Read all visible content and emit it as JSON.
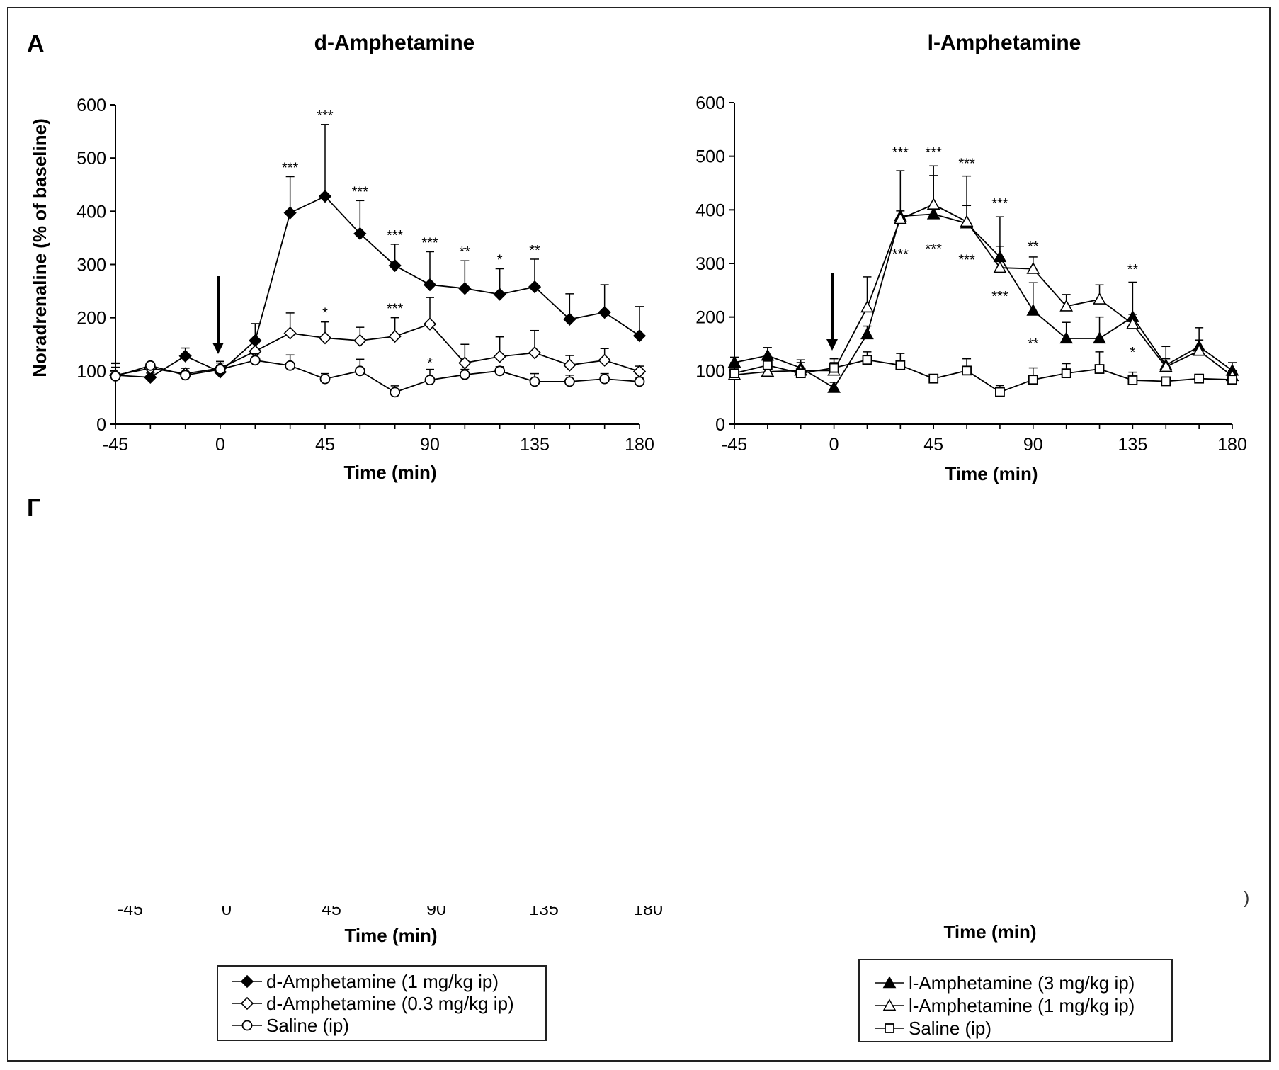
{
  "panel_label": "A",
  "cut_label": "Г",
  "legend_left": {
    "entries": [
      {
        "label": "d-Amphetamine (1 mg/kg ip)",
        "marker": "diamond-filled"
      },
      {
        "label": "d-Amphetamine (0.3 mg/kg ip)",
        "marker": "diamond-open"
      },
      {
        "label": "Saline (ip)",
        "marker": "circle-open"
      }
    ]
  },
  "legend_right": {
    "entries": [
      {
        "label": "l-Amphetamine (3 mg/kg ip)",
        "marker": "triangle-filled"
      },
      {
        "label": "l-Amphetamine (1 mg/kg ip)",
        "marker": "triangle-open"
      },
      {
        "label": "Saline (ip)",
        "marker": "square-open"
      }
    ]
  },
  "lower_partial": {
    "left_xlabel": "Time (min)",
    "right_xlabel": "Time (min)",
    "left_ticks": [
      "-45",
      "0",
      "45",
      "90",
      "135",
      "180"
    ],
    "right_edge_char": ")"
  },
  "chart_data": [
    {
      "type": "line",
      "title": "d-Amphetamine",
      "xlabel": "Time (min)",
      "ylabel": "Noradrenaline (% of baseline)",
      "xlim": [
        -45,
        180
      ],
      "ylim": [
        0,
        600
      ],
      "xticks": [
        -45,
        0,
        45,
        90,
        135,
        180
      ],
      "yticks": [
        0,
        100,
        200,
        300,
        400,
        500,
        600
      ],
      "grid": false,
      "legend": "bottom",
      "injection_arrow_x": 0,
      "x": [
        -45,
        -30,
        -15,
        0,
        15,
        30,
        45,
        60,
        75,
        90,
        105,
        120,
        135,
        150,
        165,
        180
      ],
      "series": [
        {
          "name": "d-Amphetamine (1 mg/kg ip)",
          "marker": "diamond-filled",
          "values": [
            92,
            88,
            128,
            98,
            157,
            397,
            428,
            358,
            298,
            262,
            255,
            244,
            258,
            197,
            210,
            166
          ],
          "error": [
            22,
            8,
            15,
            12,
            32,
            68,
            135,
            62,
            40,
            62,
            52,
            48,
            52,
            48,
            52,
            55
          ]
        },
        {
          "name": "d-Amphetamine (0.3 mg/kg ip)",
          "marker": "diamond-open",
          "values": [
            92,
            105,
            95,
            105,
            137,
            171,
            162,
            157,
            165,
            188,
            115,
            127,
            134,
            111,
            120,
            99
          ],
          "error": [
            15,
            10,
            10,
            10,
            15,
            38,
            30,
            25,
            35,
            50,
            35,
            37,
            42,
            18,
            22,
            10
          ]
        },
        {
          "name": "Saline (ip)",
          "marker": "circle-open",
          "values": [
            90,
            110,
            92,
            103,
            120,
            110,
            85,
            100,
            60,
            83,
            93,
            100,
            80,
            80,
            85,
            80
          ],
          "error": [
            25,
            5,
            5,
            15,
            12,
            20,
            10,
            22,
            12,
            20,
            10,
            8,
            15,
            12,
            10,
            8
          ]
        }
      ],
      "annotations": [
        {
          "x": 30,
          "y": 465,
          "text": "***"
        },
        {
          "x": 45,
          "y": 563,
          "text": "***"
        },
        {
          "x": 60,
          "y": 420,
          "text": "***"
        },
        {
          "x": 75,
          "y": 338,
          "text": "***"
        },
        {
          "x": 90,
          "y": 324,
          "text": "***"
        },
        {
          "x": 105,
          "y": 307,
          "text": "**"
        },
        {
          "x": 120,
          "y": 292,
          "text": "*"
        },
        {
          "x": 135,
          "y": 310,
          "text": "**"
        },
        {
          "x": 45,
          "y": 192,
          "text": "*"
        },
        {
          "x": 75,
          "y": 200,
          "text": "***"
        },
        {
          "x": 90,
          "y": 138,
          "text": "*",
          "below": true
        }
      ]
    },
    {
      "type": "line",
      "title": "l-Amphetamine",
      "xlabel": "Time (min)",
      "ylabel": "",
      "xlim": [
        -45,
        180
      ],
      "ylim": [
        0,
        600
      ],
      "xticks": [
        -45,
        0,
        45,
        90,
        135,
        180
      ],
      "yticks": [
        0,
        100,
        200,
        300,
        400,
        500,
        600
      ],
      "grid": false,
      "legend": "bottom",
      "injection_arrow_x": 0,
      "x": [
        -45,
        -30,
        -15,
        0,
        15,
        30,
        45,
        60,
        75,
        90,
        105,
        120,
        135,
        150,
        165,
        180
      ],
      "series": [
        {
          "name": "l-Amphetamine (3 mg/kg ip)",
          "marker": "triangle-filled",
          "values": [
            115,
            128,
            105,
            68,
            168,
            388,
            392,
            375,
            312,
            212,
            160,
            160,
            200,
            110,
            145,
            100
          ],
          "error": [
            10,
            15,
            15,
            10,
            15,
            85,
            72,
            88,
            75,
            52,
            30,
            40,
            65,
            35,
            35,
            15
          ]
        },
        {
          "name": "l-Amphetamine (1 mg/kg ip)",
          "marker": "triangle-open",
          "values": [
            92,
            98,
            100,
            100,
            218,
            383,
            410,
            378,
            292,
            290,
            220,
            233,
            187,
            107,
            137,
            90
          ],
          "error": [
            15,
            15,
            15,
            15,
            57,
            15,
            72,
            30,
            40,
            22,
            22,
            27,
            18,
            15,
            20,
            10
          ]
        },
        {
          "name": "Saline (ip)",
          "marker": "square-open",
          "values": [
            95,
            110,
            95,
            105,
            120,
            110,
            85,
            100,
            60,
            83,
            95,
            103,
            82,
            80,
            85,
            83
          ],
          "error": [
            20,
            10,
            5,
            17,
            15,
            22,
            8,
            22,
            12,
            22,
            18,
            32,
            15,
            8,
            8,
            8
          ]
        }
      ],
      "annotations": [
        {
          "x": 30,
          "y": 490,
          "text": "***"
        },
        {
          "x": 45,
          "y": 490,
          "text": "***"
        },
        {
          "x": 60,
          "y": 470,
          "text": "***"
        },
        {
          "x": 75,
          "y": 395,
          "text": "***"
        },
        {
          "x": 90,
          "y": 315,
          "text": "**"
        },
        {
          "x": 135,
          "y": 272,
          "text": "**"
        },
        {
          "x": 30,
          "y": 340,
          "text": "***",
          "below": true
        },
        {
          "x": 45,
          "y": 350,
          "text": "***",
          "below": true
        },
        {
          "x": 60,
          "y": 330,
          "text": "***",
          "below": true
        },
        {
          "x": 75,
          "y": 262,
          "text": "***",
          "below": true
        },
        {
          "x": 90,
          "y": 173,
          "text": "**",
          "below": true
        },
        {
          "x": 135,
          "y": 157,
          "text": "*",
          "below": true
        }
      ]
    }
  ]
}
